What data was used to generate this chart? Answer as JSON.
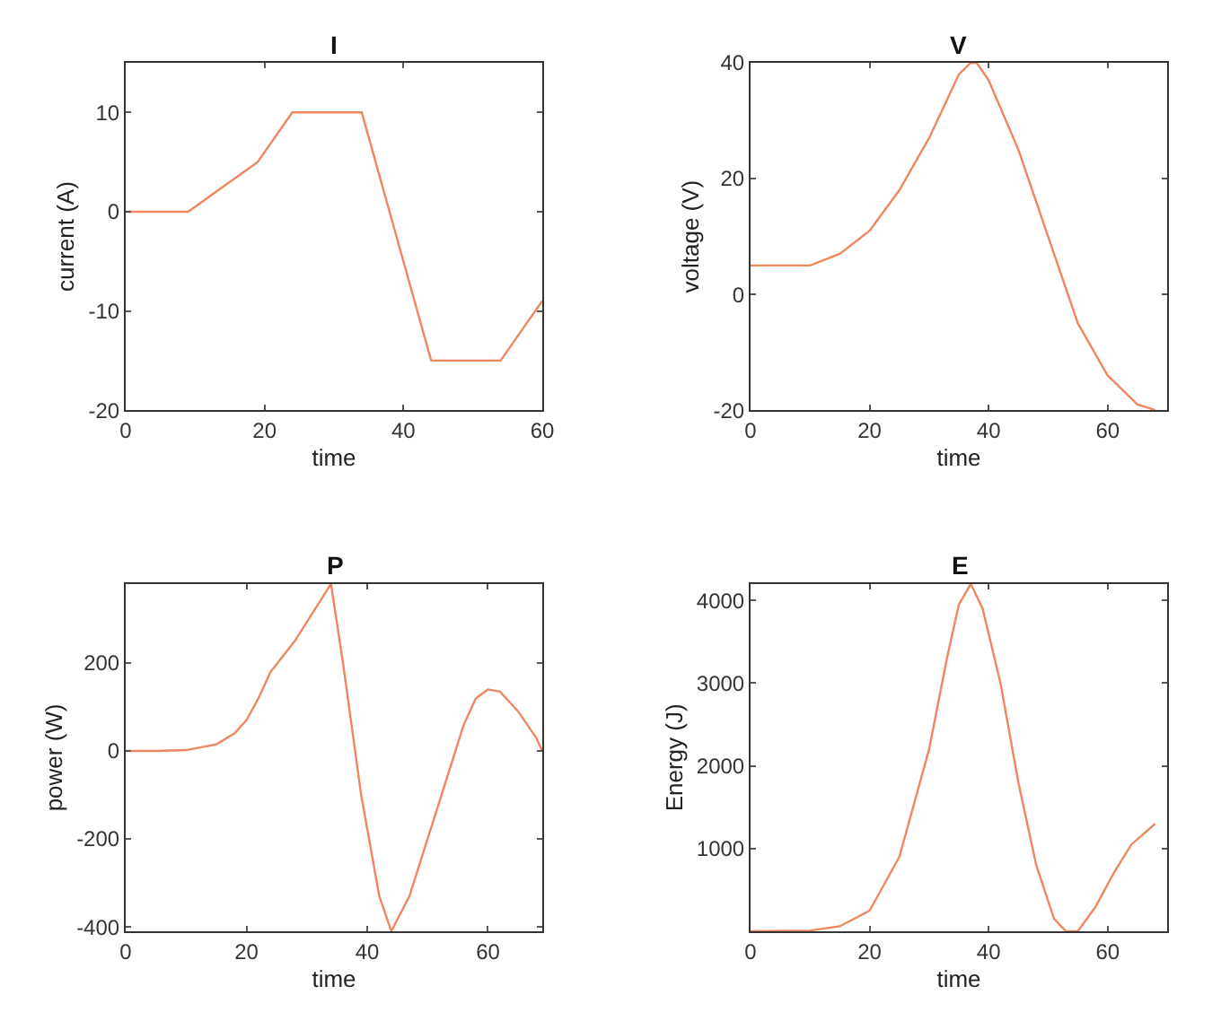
{
  "chart_data": [
    {
      "type": "line",
      "title": "I",
      "xlabel": "time",
      "ylabel": "current (A)",
      "x": [
        0,
        9,
        19,
        24,
        34,
        44,
        54,
        60
      ],
      "series": [
        {
          "color": "#f0865f",
          "values": [
            0,
            0,
            5,
            10,
            10,
            -15,
            -15,
            -9
          ]
        }
      ],
      "xlim": [
        0,
        60
      ],
      "xticks": [
        0,
        20,
        40,
        60
      ],
      "ylim": [
        -20,
        15
      ],
      "yticks": [
        -20,
        -10,
        0,
        10
      ]
    },
    {
      "type": "line",
      "title": "V",
      "xlabel": "time",
      "ylabel": "voltage (V)",
      "x": [
        0,
        10,
        15,
        20,
        25,
        30,
        35,
        37,
        38,
        40,
        45,
        50,
        55,
        60,
        65,
        68
      ],
      "series": [
        {
          "color": "#f0865f",
          "values": [
            5,
            5,
            7,
            11,
            18,
            27,
            38,
            40,
            40,
            37,
            25,
            10,
            -5,
            -14,
            -19,
            -20
          ]
        }
      ],
      "xlim": [
        0,
        70
      ],
      "xticks": [
        0,
        20,
        40,
        60
      ],
      "ylim": [
        -20,
        40
      ],
      "yticks": [
        -20,
        0,
        20,
        40
      ]
    },
    {
      "type": "line",
      "title": "P",
      "xlabel": "time",
      "ylabel": "power (W)",
      "x": [
        0,
        5,
        10,
        15,
        18,
        20,
        22,
        24,
        28,
        34,
        36,
        39,
        42,
        44,
        47,
        50,
        53,
        56,
        58,
        60,
        62,
        65,
        68,
        69
      ],
      "series": [
        {
          "color": "#f0865f",
          "values": [
            0,
            0,
            2,
            15,
            40,
            70,
            120,
            180,
            250,
            380,
            200,
            -100,
            -330,
            -410,
            -330,
            -200,
            -70,
            60,
            120,
            140,
            135,
            90,
            30,
            0
          ]
        }
      ],
      "xlim": [
        0,
        69
      ],
      "xticks": [
        0,
        20,
        40,
        60
      ],
      "ylim": [
        -410,
        380
      ],
      "yticks": [
        -400,
        -200,
        0,
        200
      ]
    },
    {
      "type": "line",
      "title": "E",
      "xlabel": "time",
      "ylabel": "Energy (J)",
      "x": [
        0,
        10,
        15,
        20,
        25,
        30,
        33,
        35,
        37,
        39,
        42,
        45,
        48,
        51,
        53,
        55,
        58,
        61,
        64,
        68
      ],
      "series": [
        {
          "color": "#f0865f",
          "values": [
            0,
            10,
            60,
            250,
            900,
            2200,
            3300,
            3950,
            4200,
            3900,
            3000,
            1800,
            800,
            150,
            0,
            0,
            300,
            700,
            1050,
            1300
          ]
        }
      ],
      "xlim": [
        0,
        70
      ],
      "xticks": [
        0,
        20,
        40,
        60
      ],
      "ylim": [
        0,
        4200
      ],
      "yticks": [
        1000,
        2000,
        3000,
        4000
      ]
    }
  ]
}
